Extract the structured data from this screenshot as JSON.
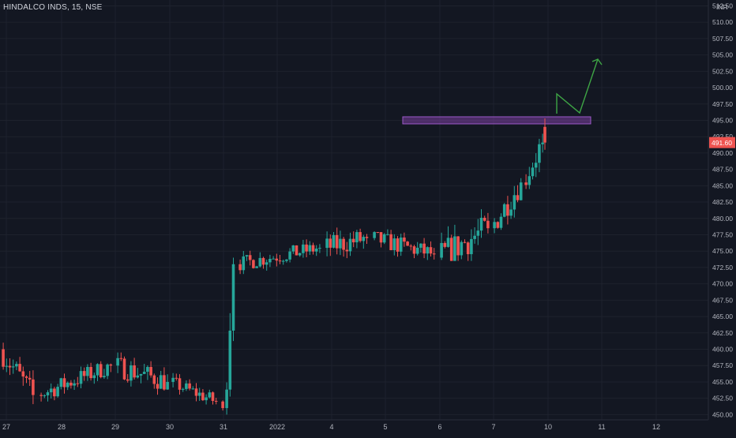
{
  "symbol": "HINDALCO INDS, 15, NSE",
  "currency": "INR",
  "colors": {
    "background": "#131722",
    "grid": "#1e222d",
    "text": "#b2b5be",
    "up": "#26a69a",
    "down": "#ef5350",
    "last_price_bg": "#ef5350",
    "resistance_zone": "#7b3fa0",
    "projection": "#3ea545"
  },
  "chart_data": {
    "type": "candlestick",
    "y_range": [
      449.2,
      513.4
    ],
    "y_ticks": [
      "512.50",
      "510.00",
      "507.50",
      "505.00",
      "502.50",
      "500.00",
      "497.50",
      "495.00",
      "492.50",
      "490.00",
      "487.50",
      "485.00",
      "482.50",
      "480.00",
      "477.50",
      "475.00",
      "472.50",
      "470.00",
      "467.50",
      "465.00",
      "462.50",
      "460.00",
      "457.50",
      "455.00",
      "452.50",
      "450.00"
    ],
    "x_ticks": [
      "27",
      "28",
      "29",
      "30",
      "31",
      "2022",
      "4",
      "5",
      "6",
      "7",
      "10",
      "11",
      "12"
    ],
    "last_price": "491.60",
    "resistance_zone": {
      "from": 494.7,
      "to": 495.3
    },
    "segments": [
      {
        "label": "27",
        "open": 460.0,
        "close": 453.0,
        "high": 461.0,
        "low": 451.0
      },
      {
        "label": "28",
        "open": 453.0,
        "close": 457.5,
        "high": 459.0,
        "low": 452.0
      },
      {
        "label": "29",
        "open": 457.5,
        "close": 455.0,
        "high": 459.5,
        "low": 451.0
      },
      {
        "label": "30",
        "open": 455.0,
        "close": 452.0,
        "high": 456.5,
        "low": 451.0
      },
      {
        "label": "31",
        "open": 452.0,
        "close": 451.0,
        "high": 453.0,
        "low": 449.8
      },
      {
        "label": "31",
        "open": 451.0,
        "close": 473.0,
        "high": 474.0,
        "low": 450.0
      },
      {
        "label": "2022",
        "open": 473.0,
        "close": 475.5,
        "high": 477.5,
        "low": 471.5
      },
      {
        "label": "4",
        "open": 475.5,
        "close": 477.0,
        "high": 481.5,
        "low": 473.0
      },
      {
        "label": "5",
        "open": 477.0,
        "close": 474.5,
        "high": 479.0,
        "low": 472.0
      },
      {
        "label": "6",
        "open": 474.0,
        "close": 478.5,
        "high": 485.5,
        "low": 473.5
      },
      {
        "label": "7",
        "open": 478.5,
        "close": 485.5,
        "high": 487.0,
        "low": 477.0
      },
      {
        "label": "10",
        "open": 485.5,
        "close": 491.6,
        "high": 495.3,
        "low": 484.5
      }
    ]
  }
}
